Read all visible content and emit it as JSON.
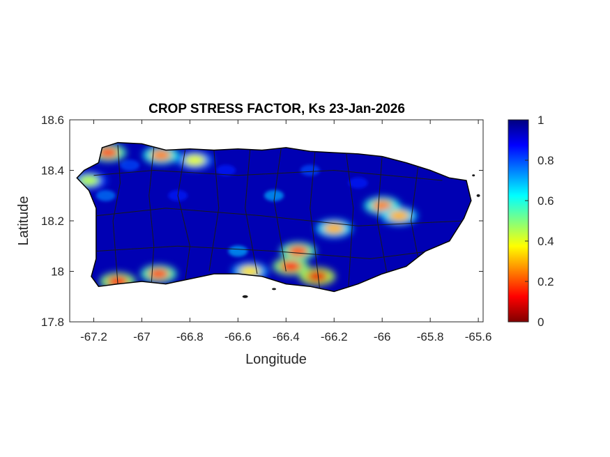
{
  "figure": {
    "title": "CROP STRESS FACTOR, Ks  23-Jan-2026",
    "xlabel": "Longitude",
    "ylabel": "Latitude"
  },
  "map": {
    "type": "raster map",
    "region_outline_color": "#000000",
    "background_color": "#ffffff",
    "colormap": "jet",
    "xlim": [
      -67.3,
      -65.58
    ],
    "ylim": [
      17.8,
      18.6
    ],
    "xticks": [
      "-67.2",
      "-67",
      "-66.8",
      "-66.6",
      "-66.4",
      "-66.2",
      "-66",
      "-65.8",
      "-65.6"
    ],
    "yticks": [
      "18.6",
      "18.4",
      "18.2",
      "18",
      "17.8"
    ],
    "colorbar": {
      "range": [
        0,
        1
      ],
      "ticks": [
        "1",
        "0.8",
        "0.6",
        "0.4",
        "0.2",
        "0"
      ],
      "colors": [
        "#800000",
        "#ff0000",
        "#ff8000",
        "#ffff00",
        "#80ff80",
        "#00ffff",
        "#0080ff",
        "#0000ff",
        "#000080"
      ]
    },
    "low_value_zones": [
      {
        "lon": -67.1,
        "lat": 17.96,
        "value": 0.15
      },
      {
        "lon": -66.93,
        "lat": 17.99,
        "value": 0.2
      },
      {
        "lon": -66.55,
        "lat": 18.0,
        "value": 0.35
      },
      {
        "lon": -66.38,
        "lat": 18.02,
        "value": 0.15
      },
      {
        "lon": -66.27,
        "lat": 17.98,
        "value": 0.1
      },
      {
        "lon": -66.35,
        "lat": 18.08,
        "value": 0.2
      },
      {
        "lon": -66.2,
        "lat": 18.17,
        "value": 0.3
      },
      {
        "lon": -66.0,
        "lat": 18.26,
        "value": 0.25
      },
      {
        "lon": -65.93,
        "lat": 18.22,
        "value": 0.3
      },
      {
        "lon": -67.14,
        "lat": 18.47,
        "value": 0.2
      },
      {
        "lon": -66.92,
        "lat": 18.46,
        "value": 0.25
      },
      {
        "lon": -66.78,
        "lat": 18.44,
        "value": 0.4
      },
      {
        "lon": -67.22,
        "lat": 18.36,
        "value": 0.45
      }
    ]
  }
}
